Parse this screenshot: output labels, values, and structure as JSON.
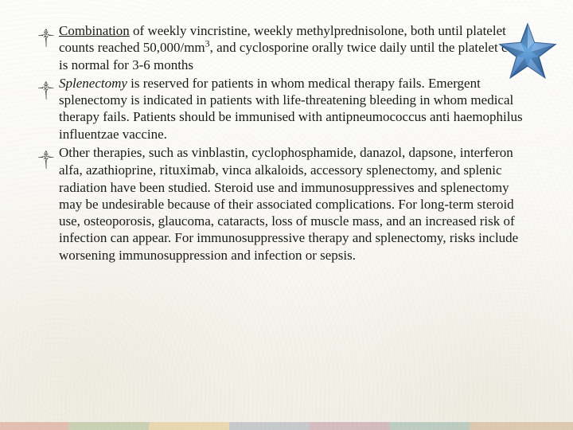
{
  "bullets": [
    {
      "html": "<span class='underline'>Combination</span> of weekly vincristine, weekly methylprednisolone, both until platelet counts reached 50,000/mm<span class='sup'>3</span>, and cyclosporine orally twice daily until the platelet count is normal for 3-6 months"
    },
    {
      "html": "<span class='italic'>Splenectomy</span> is reserved for patients in whom medical therapy fails. Emergent splenectomy is indicated in patients with life-threatening bleeding in whom medical therapy fails. Patients should be immunised with antipneumococcus anti haemophilus influentzae vaccine."
    },
    {
      "html": "Other therapies, such as vinblastin, cyclophosphamide, danazol, dapsone, interferon alfa, azathioprine, <span class='large'>rituximab</span>, vinca alkaloids, accessory splenectomy, and splenic radiation have been studied. Steroid use and immunosuppressives and splenectomy may be undesirable because of their associated complications. For long-term steroid use, osteoporosis, glaucoma, cataracts, loss of muscle mass, and an increased risk of infection can appear. For immunosuppressive therapy and splenectomy, risks include worsening immunosuppression and infection or sepsis."
    }
  ],
  "bullet_marker": "༒",
  "star": {
    "fill_outer": "#6aa8e0",
    "fill_inner": "#3b6fb0",
    "stroke": "#2d5a94"
  },
  "colors": {
    "text": "#1a1a1a",
    "background": "#fdfdfb"
  }
}
